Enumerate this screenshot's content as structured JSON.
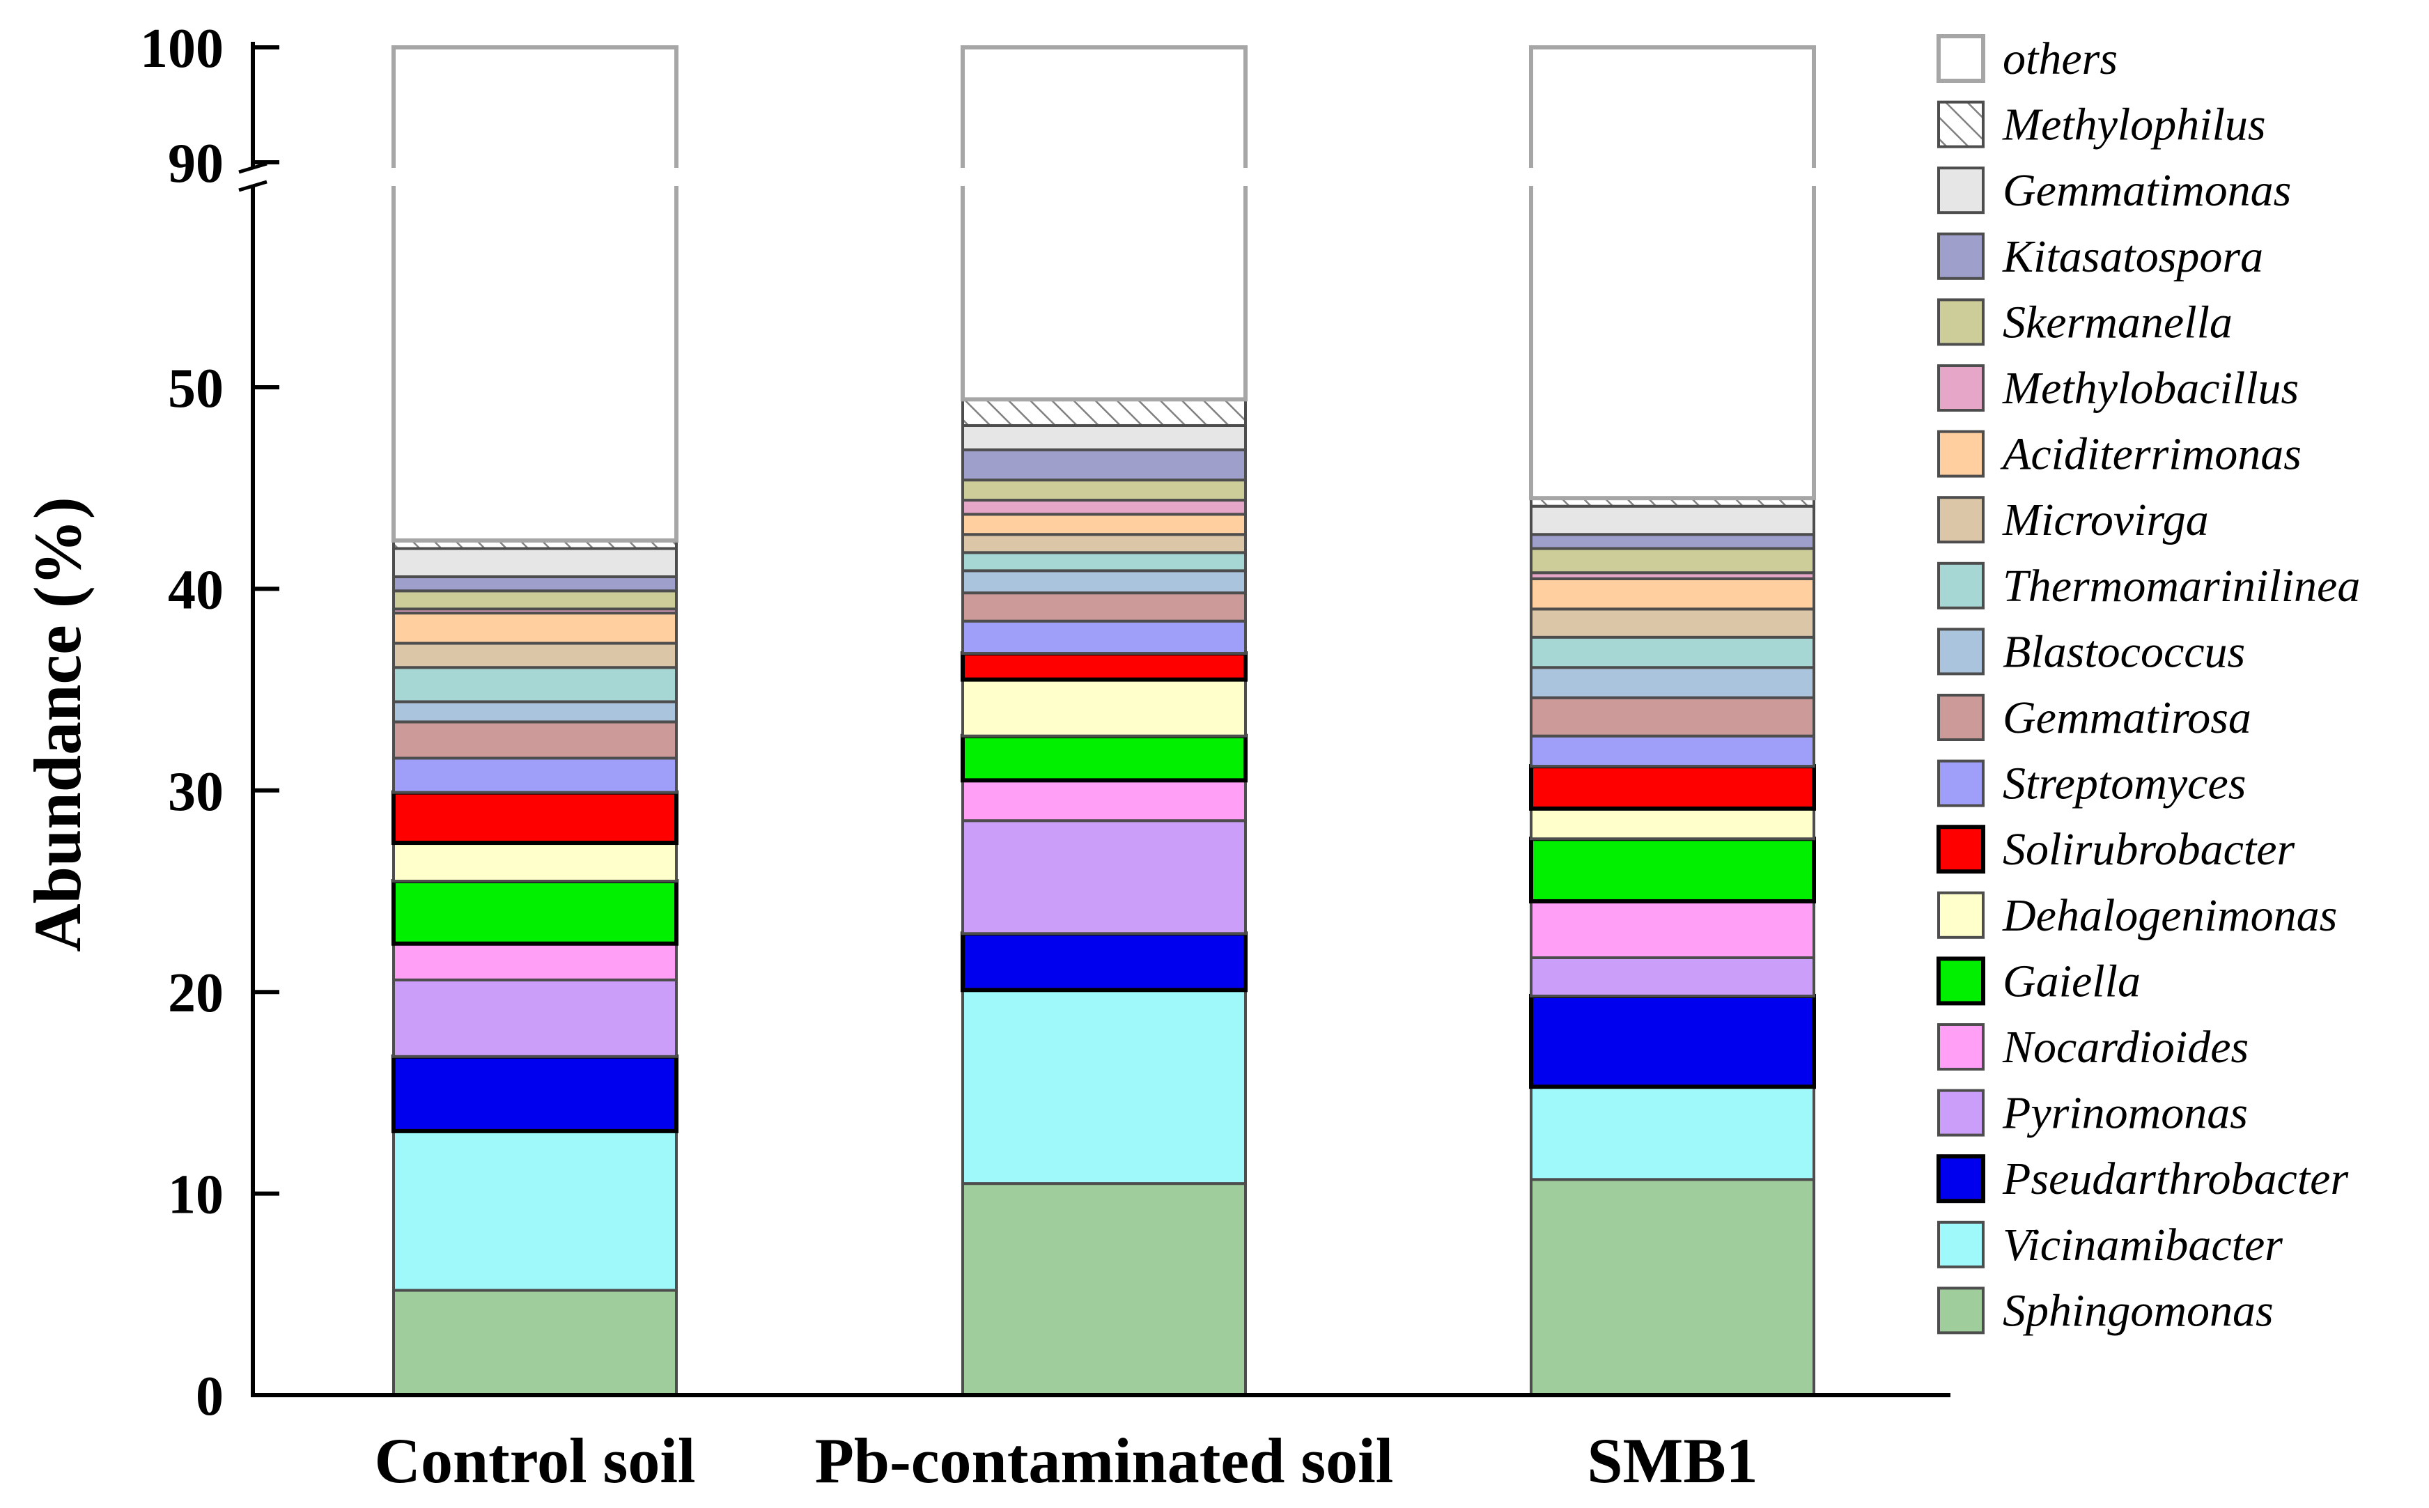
{
  "chart_data": {
    "type": "bar",
    "stacked": true,
    "broken_axis": true,
    "ylabel": "Abundance (%)",
    "xlabel": "",
    "title": "",
    "categories": [
      "Control soil",
      "Pb-contaminated soil",
      "SMB1"
    ],
    "y_ticks": [
      0,
      10,
      20,
      30,
      40,
      50,
      90,
      100
    ],
    "y_break": [
      50,
      90
    ],
    "ylim": [
      0,
      100
    ],
    "legend_position": "right",
    "grid": false,
    "series": [
      {
        "name": "Sphingomonas",
        "color": "#9fce9c",
        "values": [
          5.2,
          10.5,
          10.7
        ]
      },
      {
        "name": "Vicinamibacter",
        "color": "#9ff9fb",
        "values": [
          7.9,
          9.6,
          4.6
        ]
      },
      {
        "name": "Pseudarthrobacter",
        "color": "#0000ee",
        "values": [
          3.7,
          2.8,
          4.5
        ]
      },
      {
        "name": "Pyrinomonas",
        "color": "#cb9ff9",
        "values": [
          3.8,
          5.6,
          1.9
        ]
      },
      {
        "name": "Nocardioides",
        "color": "#ff9ff5",
        "values": [
          1.8,
          2.0,
          2.8
        ]
      },
      {
        "name": "Gaiella",
        "color": "#00f000",
        "values": [
          3.1,
          2.2,
          3.1
        ]
      },
      {
        "name": "Dehalogenimonas",
        "color": "#ffffcc",
        "values": [
          1.9,
          2.8,
          1.5
        ]
      },
      {
        "name": "Solirubrobacter",
        "color": "#ff0000",
        "values": [
          2.5,
          1.3,
          2.1
        ]
      },
      {
        "name": "Streptomyces",
        "color": "#9f9ff9",
        "values": [
          1.7,
          1.6,
          1.5
        ]
      },
      {
        "name": "Gemmatirosa",
        "color": "#cd9a9a",
        "values": [
          1.8,
          1.4,
          1.9
        ]
      },
      {
        "name": "Blastococcus",
        "color": "#a9c4dc",
        "values": [
          1.0,
          1.1,
          1.5
        ]
      },
      {
        "name": "Thermomarinilinea",
        "color": "#a6d7d4",
        "values": [
          1.7,
          0.9,
          1.5
        ]
      },
      {
        "name": "Microvirga",
        "color": "#dcc6a8",
        "values": [
          1.2,
          0.9,
          1.4
        ]
      },
      {
        "name": "Aciditerrimonas",
        "color": "#ffcf9f",
        "values": [
          1.5,
          1.0,
          1.5
        ]
      },
      {
        "name": "Methylobacillus",
        "color": "#e6a6c8",
        "values": [
          0.2,
          0.7,
          0.3
        ]
      },
      {
        "name": "Skermanella",
        "color": "#cdcd9a",
        "values": [
          0.9,
          1.0,
          1.2
        ]
      },
      {
        "name": "Kitasatospora",
        "color": "#9f9fcc",
        "values": [
          0.7,
          1.5,
          0.7
        ]
      },
      {
        "name": "Gemmatimonas",
        "color": "#e6e6e6",
        "values": [
          1.4,
          1.2,
          1.4
        ]
      },
      {
        "name": "Methylophilus",
        "color": "#ffffff",
        "pattern": "hatch",
        "values": [
          0.4,
          1.3,
          0.4
        ]
      },
      {
        "name": "others",
        "color": "#ffffff",
        "values": [
          57.0,
          49.8,
          54.7
        ]
      }
    ]
  }
}
